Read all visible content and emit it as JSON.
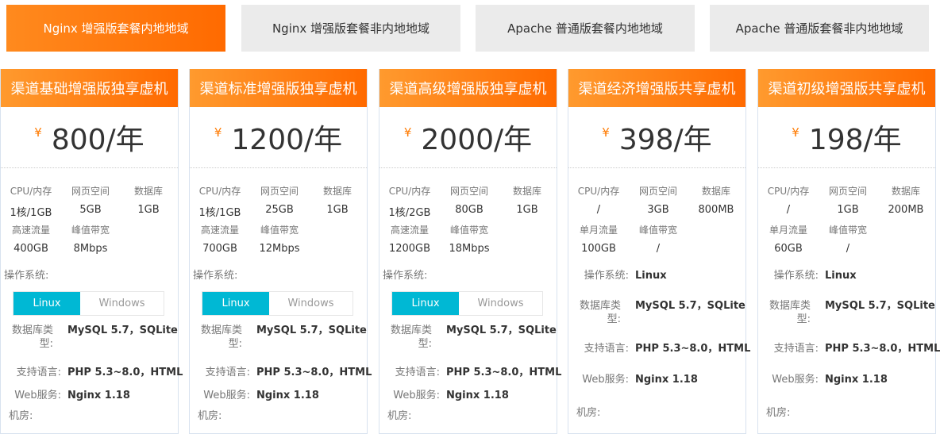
{
  "tabs": [
    {
      "label": "Nginx 增强版套餐内地地域",
      "active": true
    },
    {
      "label": "Nginx 增强版套餐非内地地域"
    },
    {
      "label": "Apache 普通版套餐内地地域"
    },
    {
      "label": "Apache 普通版套餐非内地地域"
    }
  ],
  "colors": {
    "accent": "#ff6a00",
    "os_selected": "#00b8d4"
  },
  "labels": {
    "cpu": "CPU/内存",
    "web_space": "网页空间",
    "db": "数据库",
    "peak": "峰值带宽",
    "os": "操作系统:",
    "db_type": "数据库类型:",
    "lang": "支持语言:",
    "web_server": "Web服务:",
    "room": "机房:",
    "currency": "¥"
  },
  "cards": [
    {
      "title": "渠道基础增强版独享虚机",
      "price": "800/年",
      "cpu": "1核/1GB",
      "space": "5GB",
      "db": "1GB",
      "traffic_label": "高速流量",
      "traffic": "400GB",
      "peak": "8Mbps",
      "os_options": [
        "Linux",
        "Windows"
      ],
      "db_type": "MySQL 5.7，SQLite",
      "lang": "PHP 5.3~8.0，HTML",
      "web": "Nginx 1.18"
    },
    {
      "title": "渠道标准增强版独享虚机",
      "price": "1200/年",
      "cpu": "1核/1GB",
      "space": "25GB",
      "db": "1GB",
      "traffic_label": "高速流量",
      "traffic": "700GB",
      "peak": "12Mbps",
      "os_options": [
        "Linux",
        "Windows"
      ],
      "db_type": "MySQL 5.7，SQLite",
      "lang": "PHP 5.3~8.0，HTML",
      "web": "Nginx 1.18"
    },
    {
      "title": "渠道高级增强版独享虚机",
      "price": "2000/年",
      "cpu": "1核/2GB",
      "space": "80GB",
      "db": "1GB",
      "traffic_label": "高速流量",
      "traffic": "1200GB",
      "peak": "18Mbps",
      "os_options": [
        "Linux",
        "Windows"
      ],
      "db_type": "MySQL 5.7，SQLite",
      "lang": "PHP 5.3~8.0，HTML",
      "web": "Nginx 1.18"
    },
    {
      "title": "渠道经济增强版共享虚机",
      "price": "398/年",
      "cpu": "/",
      "space": "3GB",
      "db": "800MB",
      "traffic_label": "单月流量",
      "traffic": "100GB",
      "peak": "/",
      "os": "Linux",
      "db_type": "MySQL 5.7，SQLite",
      "lang": "PHP 5.3~8.0，HTML",
      "web": "Nginx 1.18"
    },
    {
      "title": "渠道初级增强版共享虚机",
      "price": "198/年",
      "cpu": "/",
      "space": "1GB",
      "db": "200MB",
      "traffic_label": "单月流量",
      "traffic": "60GB",
      "peak": "/",
      "os": "Linux",
      "db_type": "MySQL 5.7，SQLite",
      "lang": "PHP 5.3~8.0，HTML",
      "web": "Nginx 1.18"
    }
  ]
}
